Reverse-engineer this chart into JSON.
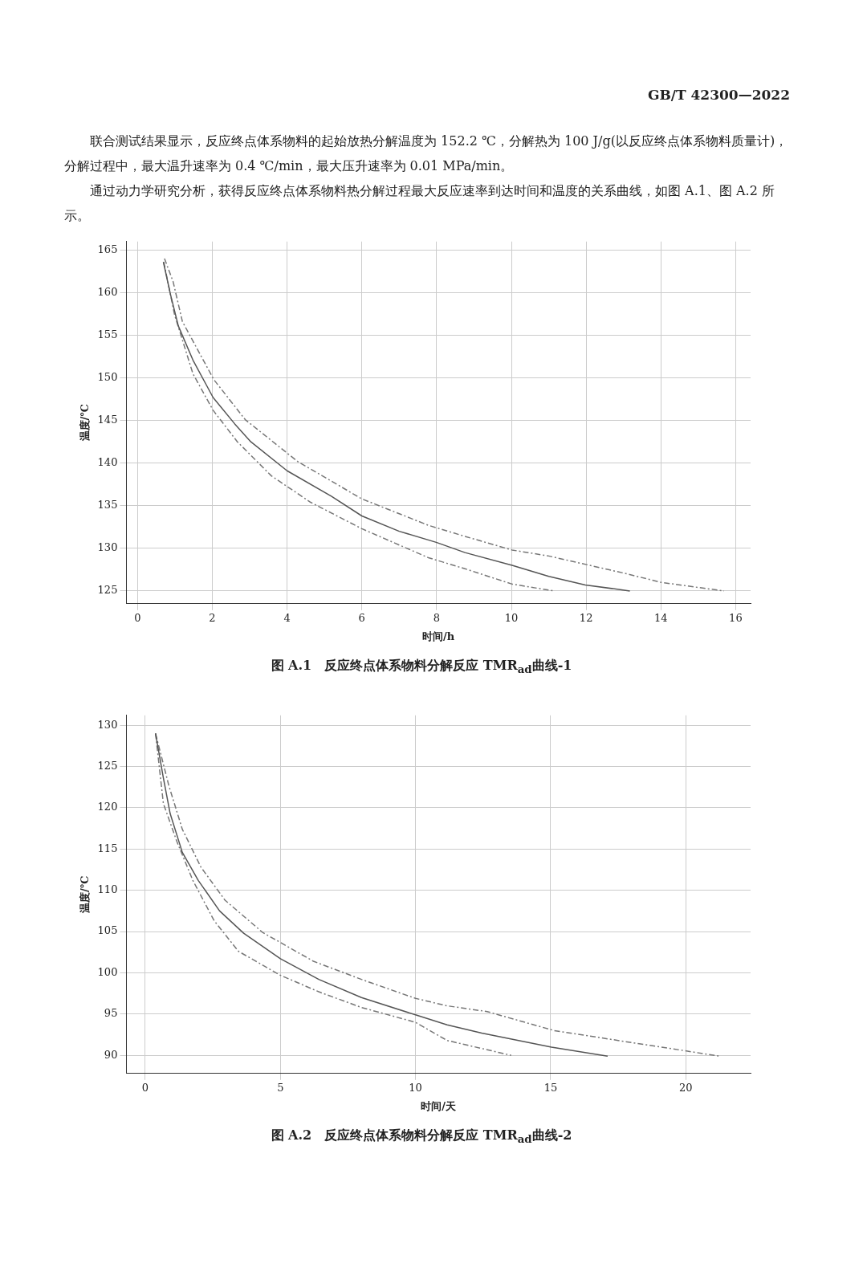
{
  "chart_data": [
    {
      "type": "line",
      "title": "图 A.1　反应终点体系物料分解反应 TMR$_{ad}$曲线-1",
      "xlabel": "时间/h",
      "ylabel": "温度/℃",
      "annotations": [
        "GB/T 42300—2022",
        "联合测试结果显示，反应终点体系物料的起始放热分解温度为 152.2 ℃，分解热为 100 J/g(以反应终点体系物料质量计)，分解过程中，最大温升速率为 0.4 ℃/min，最大压升速率为 0.01 MPa/min。",
        "通过动力学研究分析，获得反应终点体系物料热分解过程最大反应速率到达时间和温度的关系曲线，如图 A.1、图 A.2 所示。"
      ],
      "xlim": [
        -0.3,
        16.4
      ],
      "ylim": [
        123.5,
        166
      ],
      "xticks": [
        0,
        2,
        4,
        6,
        8,
        10,
        12,
        14,
        16
      ],
      "yticks": [
        125,
        130,
        135,
        140,
        145,
        150,
        155,
        160,
        165
      ],
      "grid": true,
      "marker": "none",
      "series": [
        {
          "color": "#555555",
          "line_style": "solid",
          "x": [
            0.69,
            0.88,
            1.09,
            1.48,
            2.02,
            2.6,
            3.03,
            4.0,
            5.19,
            6.0,
            7.0,
            7.99,
            8.76,
            10.02,
            11.0,
            11.98,
            13.17
          ],
          "values": [
            163.6,
            159.8,
            156.1,
            152.1,
            147.7,
            144.6,
            142.5,
            139.1,
            136.1,
            133.8,
            132.0,
            130.7,
            129.5,
            128.0,
            126.7,
            125.7,
            125.0
          ]
        },
        {
          "color": "#777777",
          "line_style": "dashed",
          "x": [
            0.72,
            0.95,
            1.2,
            2.04,
            2.88,
            4.28,
            6.0,
            7.78,
            8.76,
            10.02,
            11.0,
            13.0,
            14.01,
            15.69
          ],
          "values": [
            164.0,
            161.3,
            156.6,
            149.8,
            145.1,
            140.2,
            135.8,
            132.7,
            131.4,
            129.8,
            129.1,
            127.1,
            126.0,
            125.0
          ]
        },
        {
          "color": "#777777",
          "line_style": "dashed",
          "x": [
            0.7,
            0.99,
            1.48,
            2.02,
            2.67,
            3.58,
            4.63,
            6.0,
            7.78,
            8.76,
            10.02,
            11.14
          ],
          "values": [
            163.6,
            157.4,
            150.5,
            146.2,
            142.5,
            138.5,
            135.4,
            132.3,
            128.9,
            127.6,
            125.8,
            125.0
          ]
        }
      ]
    },
    {
      "type": "line",
      "title": "图 A.2　反应终点体系物料分解反应 TMR$_{ad}$曲线-2",
      "xlabel": "时间/天",
      "ylabel": "温度/℃",
      "xlim": [
        -0.7,
        22.4
      ],
      "ylim": [
        87.8,
        131.2
      ],
      "xticks": [
        0,
        5,
        10,
        15,
        20
      ],
      "yticks": [
        90,
        95,
        100,
        105,
        110,
        115,
        120,
        125,
        130
      ],
      "grid": true,
      "marker": "none",
      "series": [
        {
          "color": "#555555",
          "line_style": "solid",
          "x": [
            0.38,
            0.67,
            0.92,
            1.37,
            1.96,
            2.75,
            3.64,
            5.0,
            6.42,
            8.0,
            10.0,
            11.17,
            12.45,
            15.03,
            17.11
          ],
          "values": [
            129.0,
            123.6,
            119.3,
            114.6,
            111.2,
            107.5,
            104.8,
            101.7,
            99.2,
            97.0,
            94.9,
            93.7,
            92.7,
            91.0,
            89.9
          ]
        },
        {
          "color": "#777777",
          "line_style": "dashed",
          "x": [
            0.38,
            0.87,
            1.37,
            2.06,
            2.95,
            4.34,
            6.22,
            8.0,
            10.0,
            11.17,
            12.65,
            15.13,
            17.5,
            21.26
          ],
          "values": [
            129.0,
            122.7,
            117.4,
            112.8,
            108.8,
            104.9,
            101.4,
            99.2,
            96.9,
            96.0,
            95.3,
            93.0,
            91.8,
            89.9
          ]
        },
        {
          "color": "#777777",
          "line_style": "dashed",
          "x": [
            0.38,
            0.67,
            1.17,
            1.76,
            2.55,
            3.45,
            5.0,
            6.42,
            8.0,
            10.0,
            11.17,
            13.54
          ],
          "values": [
            129.0,
            120.5,
            115.9,
            111.2,
            106.3,
            102.6,
            99.7,
            97.7,
            95.8,
            94.0,
            91.8,
            90.0
          ]
        }
      ]
    }
  ]
}
